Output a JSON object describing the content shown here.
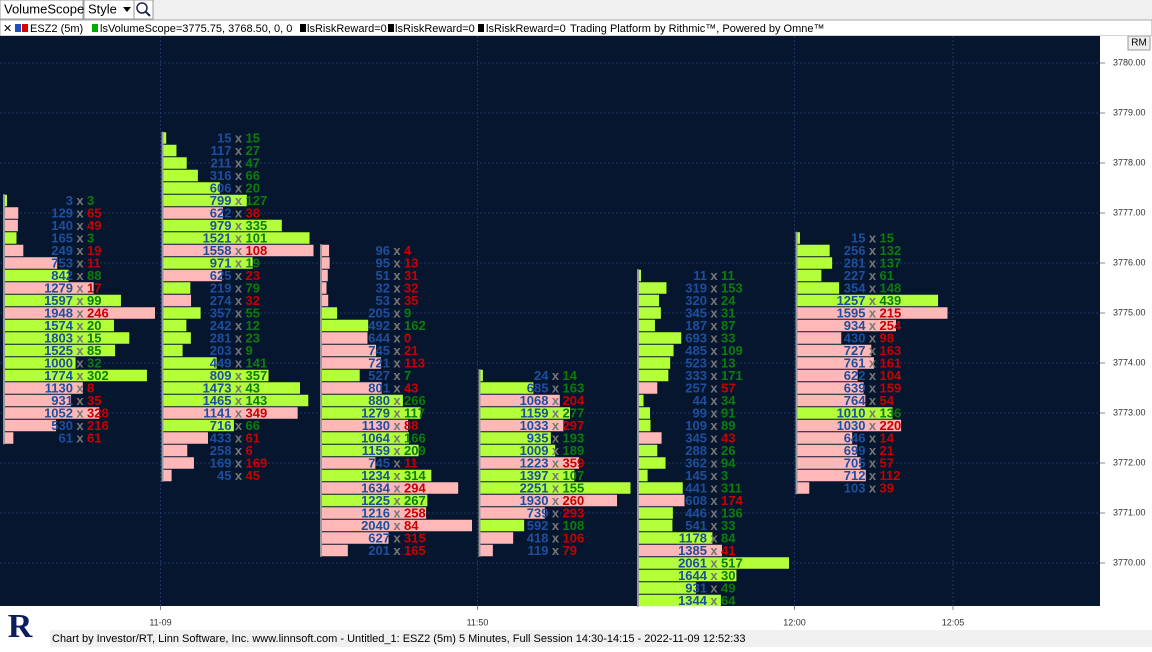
{
  "toolbar": {
    "title": "VolumeScope",
    "menu": "Style"
  },
  "info": {
    "symbol": "ESZ2 (5m)",
    "study": "lsVolumeScope=3775.75, 3768.50, 0, 0",
    "rr1": "lsRiskReward=0",
    "rr2": "lsRiskReward=0",
    "rr3": "lsRiskReward=0",
    "platform": "Trading Platform by Rithmic™, Powered by Omne™",
    "badge": "RM"
  },
  "footer": "Chart by Investor/RT, Linn Software, Inc. www.linnsoft.com - Untitled_1: ESZ2 (5m) 5 Minutes, Full Session 14:30-14:15 - 2022-11-09 12:52:33",
  "chart_data": {
    "type": "footprint",
    "separator": "x",
    "tick": 0.25,
    "up_color": "#b2ff3a",
    "down_color": "#ffb8b8",
    "bid_color": "#1d4f9f",
    "up_text_color": "#0b7d0b",
    "down_text_color": "#c80000",
    "categories": [
      null,
      "11-09",
      null,
      "11:50",
      null,
      "12:00",
      "12:05"
    ],
    "ylim": [
      3769.14,
      3780.54
    ],
    "yticks": [
      {
        "value": 3770,
        "label": "3770.00"
      },
      {
        "value": 3771,
        "label": "3771.00"
      },
      {
        "value": 3772,
        "label": "3772.00"
      },
      {
        "value": 3773,
        "label": "3773.00"
      },
      {
        "value": 3774,
        "label": "3774.00"
      },
      {
        "value": 3775,
        "label": "3775.00"
      },
      {
        "value": 3776,
        "label": "3776.00"
      },
      {
        "value": 3777,
        "label": "3777.00"
      },
      {
        "value": 3778,
        "label": "3778.00"
      },
      {
        "value": 3779,
        "label": "3779.00"
      },
      {
        "value": 3780,
        "label": "3780.00"
      }
    ],
    "grid": true,
    "columns": [
      {
        "top": 3777.25,
        "bid": [
          3,
          129,
          140,
          165,
          249,
          753,
          842,
          1279,
          1597,
          1948,
          1574,
          1803,
          1525,
          1000,
          1774,
          1130,
          931,
          1052,
          530,
          61
        ],
        "ask": [
          3,
          65,
          49,
          3,
          19,
          11,
          88,
          17,
          99,
          246,
          20,
          15,
          85,
          32,
          302,
          8,
          35,
          328,
          216,
          61
        ],
        "up": [
          true,
          false,
          false,
          true,
          false,
          false,
          true,
          false,
          true,
          false,
          true,
          true,
          true,
          true,
          true,
          false,
          false,
          false,
          false,
          false
        ]
      },
      {
        "top": 3778.5,
        "bid": [
          15,
          117,
          211,
          316,
          606,
          799,
          622,
          979,
          1521,
          1558,
          971,
          625,
          219,
          274,
          357,
          242,
          281,
          203,
          449,
          809,
          1473,
          1465,
          1141,
          716,
          433,
          258,
          169,
          45
        ],
        "ask": [
          15,
          27,
          47,
          66,
          20,
          127,
          38,
          335,
          101,
          108,
          19,
          23,
          79,
          32,
          55,
          12,
          23,
          9,
          141,
          357,
          43,
          143,
          349,
          66,
          61,
          6,
          169,
          45
        ],
        "up": [
          true,
          true,
          true,
          true,
          true,
          true,
          false,
          true,
          true,
          false,
          true,
          false,
          true,
          false,
          true,
          true,
          true,
          true,
          true,
          true,
          true,
          true,
          false,
          true,
          false,
          false,
          false,
          false
        ]
      },
      {
        "top": 3776.25,
        "bid": [
          96,
          95,
          51,
          32,
          53,
          205,
          492,
          644,
          745,
          721,
          527,
          801,
          880,
          1279,
          1130,
          1064,
          1159,
          745,
          1234,
          1634,
          1225,
          1216,
          2040,
          627,
          201
        ],
        "ask": [
          4,
          13,
          31,
          32,
          35,
          9,
          162,
          0,
          21,
          113,
          7,
          43,
          266,
          117,
          88,
          166,
          209,
          11,
          314,
          294,
          267,
          258,
          84,
          315,
          165
        ],
        "up": [
          false,
          false,
          false,
          false,
          false,
          true,
          true,
          false,
          false,
          false,
          true,
          false,
          true,
          true,
          false,
          true,
          true,
          false,
          true,
          false,
          true,
          false,
          false,
          false,
          false
        ]
      },
      {
        "top": 3773.75,
        "bid": [
          24,
          685,
          1068,
          1159,
          1033,
          935,
          1009,
          1223,
          1397,
          2251,
          1930,
          739,
          592,
          418,
          119
        ],
        "ask": [
          14,
          163,
          204,
          277,
          297,
          193,
          189,
          359,
          107,
          155,
          260,
          293,
          108,
          106,
          79
        ],
        "up": [
          true,
          true,
          false,
          true,
          false,
          true,
          true,
          false,
          true,
          true,
          false,
          false,
          true,
          false,
          false
        ]
      },
      {
        "top": 3775.75,
        "bid": [
          11,
          319,
          320,
          345,
          187,
          693,
          485,
          523,
          333,
          257,
          44,
          99,
          109,
          345,
          288,
          362,
          145,
          441,
          608,
          446,
          541,
          1178,
          1385,
          2061,
          1644,
          931,
          1344
        ],
        "ask": [
          11,
          153,
          24,
          31,
          87,
          33,
          109,
          13,
          171,
          57,
          34,
          91,
          89,
          43,
          26,
          94,
          3,
          311,
          174,
          136,
          33,
          84,
          41,
          517,
          30,
          49,
          64
        ],
        "up": [
          true,
          true,
          true,
          true,
          true,
          true,
          true,
          true,
          true,
          false,
          true,
          true,
          true,
          false,
          true,
          true,
          true,
          true,
          false,
          true,
          true,
          true,
          false,
          true,
          true,
          true,
          true
        ]
      },
      {
        "top": 3776.5,
        "bid": [
          15,
          256,
          281,
          227,
          354,
          1257,
          1595,
          934,
          430,
          727,
          761,
          622,
          639,
          764,
          1010,
          1030,
          646,
          699,
          705,
          712,
          103
        ],
        "ask": [
          15,
          132,
          137,
          61,
          148,
          439,
          215,
          254,
          98,
          163,
          161,
          104,
          159,
          54,
          136,
          220,
          14,
          21,
          57,
          112,
          39
        ],
        "up": [
          true,
          true,
          true,
          true,
          true,
          true,
          false,
          false,
          false,
          false,
          false,
          false,
          false,
          false,
          true,
          false,
          false,
          false,
          false,
          false,
          false
        ]
      }
    ]
  }
}
